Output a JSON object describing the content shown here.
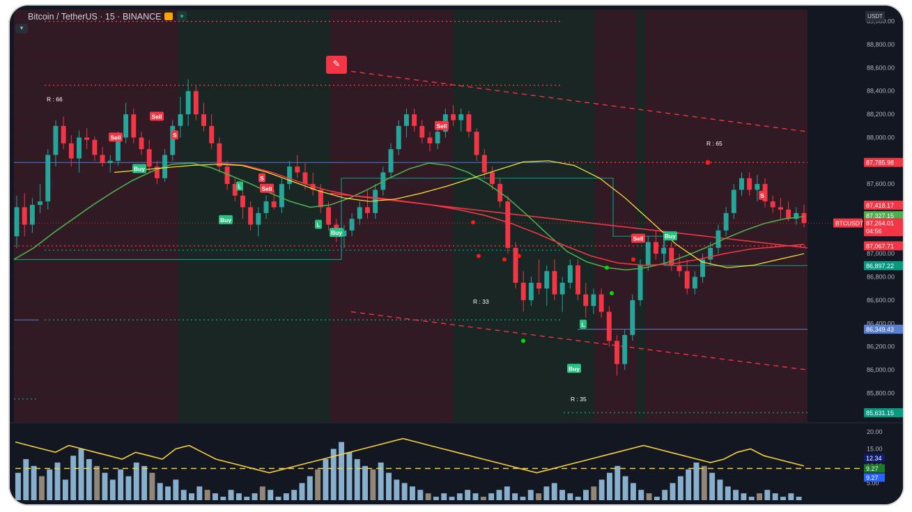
{
  "header": {
    "symbol_title": "Bitcoin / TetherUS · 15 · BINANCE",
    "currency": "USDT",
    "collapse_icon": "chevron-down-icon",
    "alert_icon": "pencil-icon"
  },
  "colors": {
    "background": "#131722",
    "bull": "#26a69a",
    "bear": "#f23645",
    "ema_green": "#4caf50",
    "ema_red": "#f23645",
    "ema_yellow": "#ffeb3b",
    "hline_blue": "#5b7fcf",
    "zone_red": "#4a1e25",
    "zone_green": "#1f3324"
  },
  "chart_data": {
    "type": "candlestick",
    "symbol": "BTCUSDT",
    "interval": "15",
    "exchange": "BINANCE",
    "ylim": [
      85550,
      89100
    ],
    "y_ticks": [
      85800,
      86000,
      86200,
      86400,
      86600,
      86800,
      87000,
      87200,
      87400,
      87600,
      87800,
      88000,
      88200,
      88400,
      88600,
      88800,
      89000
    ],
    "y_tick_labels": [
      "85,800.00",
      "86,000.00",
      "86,200.00",
      "86,400.00",
      "86,600.00",
      "86,800.00",
      "87,000.00",
      "87,200.00",
      "87,400.00",
      "87,600.00",
      "87,800.00",
      "88,000.00",
      "88,200.00",
      "88,400.00",
      "88,600.00",
      "88,800.00",
      "89,000.00"
    ],
    "current_price": 87264.01,
    "current_price_label": "87,264.01",
    "countdown": "04:56",
    "price_tags": [
      {
        "value": 87785.98,
        "label": "87,785.98",
        "color": "#f23645"
      },
      {
        "value": 87418.17,
        "label": "87,418.17",
        "color": "#f23645"
      },
      {
        "value": 87327.15,
        "label": "87,327.15",
        "color": "#4caf50"
      },
      {
        "value": 87067.71,
        "label": "87,067.71",
        "color": "#f23645"
      },
      {
        "value": 86897.22,
        "label": "86,897.22",
        "color": "#089981"
      },
      {
        "value": 86349.43,
        "label": "86,349.43",
        "color": "#5b7fcf"
      },
      {
        "value": 85631.15,
        "label": "85,631.15",
        "color": "#089981"
      }
    ],
    "candles_ohlc": [
      [
        87150,
        87500,
        87050,
        87400
      ],
      [
        87400,
        87520,
        87150,
        87250
      ],
      [
        87250,
        87480,
        87180,
        87420
      ],
      [
        87420,
        87600,
        87350,
        87450
      ],
      [
        87450,
        87900,
        87380,
        87850
      ],
      [
        87850,
        88150,
        87750,
        88100
      ],
      [
        88100,
        88180,
        87900,
        87950
      ],
      [
        87950,
        88020,
        87750,
        87820
      ],
      [
        87820,
        88060,
        87700,
        88000
      ],
      [
        88000,
        88080,
        87900,
        87980
      ],
      [
        87980,
        88010,
        87800,
        87850
      ],
      [
        87850,
        87920,
        87750,
        87780
      ],
      [
        87780,
        87850,
        87700,
        87800
      ],
      [
        87800,
        88050,
        87760,
        88000
      ],
      [
        88000,
        88300,
        87950,
        88200
      ],
      [
        88200,
        88250,
        87950,
        88000
      ],
      [
        88000,
        88050,
        87850,
        87900
      ],
      [
        87900,
        87980,
        87700,
        87750
      ],
      [
        87750,
        87800,
        87600,
        87650
      ],
      [
        87650,
        87900,
        87620,
        87850
      ],
      [
        87850,
        88150,
        87800,
        88100
      ],
      [
        88100,
        88350,
        88000,
        88200
      ],
      [
        88200,
        88500,
        88100,
        88400
      ],
      [
        88400,
        88450,
        88150,
        88200
      ],
      [
        88200,
        88300,
        88050,
        88100
      ],
      [
        88100,
        88200,
        87900,
        87950
      ],
      [
        87950,
        88000,
        87700,
        87750
      ],
      [
        87750,
        87800,
        87550,
        87600
      ],
      [
        87600,
        87650,
        87450,
        87500
      ],
      [
        87500,
        87550,
        87300,
        87400
      ],
      [
        87400,
        87450,
        87200,
        87250
      ],
      [
        87250,
        87400,
        87150,
        87350
      ],
      [
        87350,
        87500,
        87300,
        87450
      ],
      [
        87450,
        87550,
        87380,
        87400
      ],
      [
        87400,
        87650,
        87350,
        87600
      ],
      [
        87600,
        87800,
        87550,
        87750
      ],
      [
        87750,
        87850,
        87650,
        87700
      ],
      [
        87700,
        87780,
        87550,
        87600
      ],
      [
        87600,
        87700,
        87500,
        87550
      ],
      [
        87550,
        87600,
        87350,
        87400
      ],
      [
        87400,
        87450,
        87200,
        87250
      ],
      [
        87250,
        87300,
        87100,
        87150
      ],
      [
        87150,
        87250,
        87050,
        87200
      ],
      [
        87200,
        87350,
        87150,
        87300
      ],
      [
        87300,
        87450,
        87250,
        87400
      ],
      [
        87400,
        87550,
        87300,
        87350
      ],
      [
        87350,
        87600,
        87300,
        87550
      ],
      [
        87550,
        87750,
        87500,
        87700
      ],
      [
        87700,
        87950,
        87650,
        87900
      ],
      [
        87900,
        88150,
        87850,
        88100
      ],
      [
        88100,
        88250,
        88000,
        88200
      ],
      [
        88200,
        88250,
        88050,
        88100
      ],
      [
        88100,
        88150,
        87950,
        88000
      ],
      [
        88000,
        88050,
        87880,
        87950
      ],
      [
        87950,
        88100,
        87900,
        88050
      ],
      [
        88050,
        88250,
        88000,
        88200
      ],
      [
        88200,
        88280,
        88100,
        88150
      ],
      [
        88150,
        88250,
        88050,
        88200
      ],
      [
        88200,
        88230,
        88000,
        88050
      ],
      [
        88050,
        88080,
        87800,
        87850
      ],
      [
        87850,
        87900,
        87650,
        87700
      ],
      [
        87700,
        87750,
        87550,
        87600
      ],
      [
        87600,
        87650,
        87400,
        87450
      ],
      [
        87450,
        87500,
        87000,
        87050
      ],
      [
        87050,
        87100,
        86700,
        86750
      ],
      [
        86750,
        86850,
        86500,
        86600
      ],
      [
        86600,
        86800,
        86550,
        86750
      ],
      [
        86750,
        86950,
        86650,
        86700
      ],
      [
        86700,
        86900,
        86550,
        86850
      ],
      [
        86850,
        86950,
        86600,
        86650
      ],
      [
        86650,
        86800,
        86500,
        86750
      ],
      [
        86750,
        86950,
        86700,
        86900
      ],
      [
        86900,
        86950,
        86600,
        86650
      ],
      [
        86650,
        86750,
        86450,
        86550
      ],
      [
        86550,
        86700,
        86480,
        86650
      ],
      [
        86650,
        86700,
        86450,
        86500
      ],
      [
        86500,
        86550,
        86200,
        86250
      ],
      [
        86250,
        86300,
        85950,
        86050
      ],
      [
        86050,
        86350,
        86000,
        86300
      ],
      [
        86300,
        86650,
        86250,
        86600
      ],
      [
        86600,
        86950,
        86550,
        86900
      ],
      [
        86900,
        87150,
        86850,
        87100
      ],
      [
        87100,
        87200,
        86950,
        87000
      ],
      [
        87000,
        87150,
        86900,
        87050
      ],
      [
        87050,
        87100,
        86850,
        86900
      ],
      [
        86900,
        87000,
        86800,
        86850
      ],
      [
        86850,
        86950,
        86650,
        86700
      ],
      [
        86700,
        86850,
        86650,
        86800
      ],
      [
        86800,
        87000,
        86750,
        86950
      ],
      [
        86950,
        87100,
        86900,
        87050
      ],
      [
        87050,
        87250,
        87000,
        87200
      ],
      [
        87200,
        87400,
        87150,
        87350
      ],
      [
        87350,
        87600,
        87300,
        87550
      ],
      [
        87550,
        87700,
        87500,
        87650
      ],
      [
        87650,
        87700,
        87500,
        87550
      ],
      [
        87550,
        87680,
        87450,
        87600
      ],
      [
        87600,
        87650,
        87400,
        87450
      ],
      [
        87450,
        87500,
        87350,
        87400
      ],
      [
        87400,
        87480,
        87300,
        87380
      ],
      [
        87380,
        87450,
        87280,
        87300
      ],
      [
        87300,
        87400,
        87250,
        87350
      ],
      [
        87350,
        87420,
        87230,
        87264
      ]
    ],
    "ema_green": [
      86950,
      87050,
      87180,
      87300,
      87420,
      87530,
      87630,
      87710,
      87770,
      87780,
      87740,
      87670,
      87600,
      87520,
      87450,
      87400,
      87420,
      87480,
      87560,
      87650,
      87730,
      87780,
      87760,
      87700,
      87600,
      87480,
      87330,
      87170,
      87020,
      86930,
      86880,
      86860,
      86880,
      86920,
      86980,
      87050,
      87130,
      87200,
      87260,
      87300,
      87320
    ],
    "ema_red": [
      87780,
      87760,
      87700,
      87620,
      87550,
      87500,
      87480,
      87450,
      87420,
      87380,
      87330,
      87260,
      87170,
      87070,
      86980,
      86920,
      86900,
      86910,
      86950,
      87000,
      87040,
      87060,
      87080
    ],
    "ema_yellow": [
      87700,
      87720,
      87740,
      87760,
      87770,
      87760,
      87700,
      87620,
      87540,
      87480,
      87450,
      87470,
      87520,
      87580,
      87650,
      87720,
      87790,
      87800,
      87760,
      87650,
      87480,
      87280,
      87080,
      86930,
      86880,
      86900,
      86950,
      87000
    ],
    "signals": [
      {
        "text": "Sell",
        "type": "sell"
      },
      {
        "text": "Buy",
        "type": "buy"
      },
      {
        "text": "Sell",
        "type": "sell"
      },
      {
        "text": "S",
        "type": "sell"
      },
      {
        "text": "S",
        "type": "sell"
      },
      {
        "text": "Sell",
        "type": "sell"
      },
      {
        "text": "L",
        "type": "buy"
      },
      {
        "text": "Buy",
        "type": "buy"
      },
      {
        "text": "L",
        "type": "buy"
      },
      {
        "text": "Buy",
        "type": "buy"
      },
      {
        "text": "Sell",
        "type": "sell"
      },
      {
        "text": "L",
        "type": "buy"
      },
      {
        "text": "Buy",
        "type": "buy"
      },
      {
        "text": "Sell",
        "type": "sell"
      },
      {
        "text": "Buy",
        "type": "buy"
      },
      {
        "text": "S",
        "type": "sell"
      }
    ],
    "rsi_labels": [
      {
        "text": "R : 66",
        "value": 88310
      },
      {
        "text": "R : 33",
        "value": 86570
      },
      {
        "text": "R : 35",
        "value": 85730
      },
      {
        "text": "R : 65",
        "value": 87930
      }
    ],
    "support_resistance": [
      87785.98,
      87067.71,
      86897.22,
      86349.43,
      85631.15,
      88450,
      89000,
      86430,
      87030,
      86750,
      87785
    ],
    "indicator_panel": {
      "ylim": [
        0,
        22
      ],
      "y_ticks": [
        20,
        15,
        10,
        5
      ],
      "y_tick_labels": [
        "20.00",
        "15.00",
        "10.00",
        "5.00"
      ],
      "tags": [
        {
          "label": "12.34",
          "value": 12.34,
          "color": "#0d1b6e"
        },
        {
          "label": "9.27",
          "value": 9.27,
          "color": "#1b7a2a"
        },
        {
          "label": "9.27",
          "value": 9.27,
          "color": "#2962ff"
        }
      ],
      "threshold": 9.27,
      "bars": [
        8,
        12,
        10,
        7,
        9,
        11,
        6,
        13,
        15,
        12,
        10,
        8,
        6,
        9,
        7,
        11,
        10,
        8,
        5,
        4,
        6,
        3,
        2,
        4,
        3,
        2,
        1,
        3,
        2,
        1,
        2,
        4,
        3,
        1,
        2,
        3,
        5,
        7,
        9,
        12,
        15,
        17,
        14,
        12,
        10,
        9,
        11,
        8,
        6,
        5,
        4,
        3,
        2,
        1,
        2,
        1,
        2,
        3,
        2,
        1,
        2,
        3,
        4,
        2,
        1,
        3,
        2,
        4,
        5,
        3,
        2,
        1,
        3,
        4,
        6,
        8,
        10,
        7,
        5,
        3,
        2,
        1,
        3,
        5,
        7,
        9,
        11,
        10,
        8,
        6,
        4,
        3,
        2,
        1,
        2,
        3,
        2,
        1,
        2,
        1
      ],
      "yellow_line": [
        17,
        16,
        15,
        14,
        16,
        15,
        14,
        13,
        12,
        14,
        13,
        12,
        15,
        16,
        14,
        12,
        11,
        10,
        9,
        8,
        9,
        10,
        11,
        12,
        13,
        14,
        15,
        16,
        17,
        18,
        17,
        16,
        15,
        14,
        13,
        12,
        11,
        10,
        9,
        8,
        9,
        10,
        11,
        12,
        13,
        14,
        15,
        16,
        15,
        14,
        13,
        12,
        11,
        12,
        14,
        15,
        13,
        12,
        11,
        10
      ]
    },
    "title": "Bitcoin / TetherUS · 15 · BINANCE",
    "xlabel": "",
    "ylabel": ""
  }
}
